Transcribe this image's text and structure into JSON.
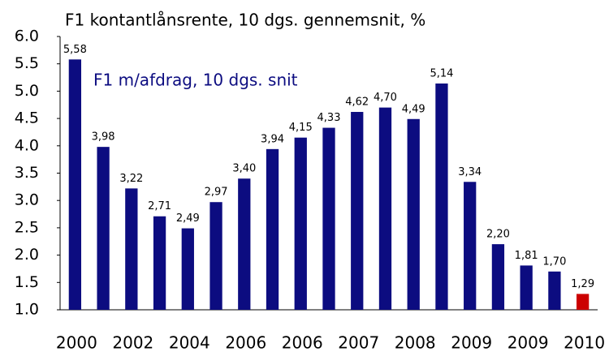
{
  "chart_data": {
    "type": "bar",
    "title": "F1 kontantlånsrente, 10 dgs. gennemsnit, %",
    "annotation": "F1 m/afdrag, 10 dgs. snit",
    "categories": [
      "2000",
      null,
      "2002",
      null,
      "2004",
      null,
      "2006",
      null,
      "2006",
      null,
      "2007",
      null,
      "2008",
      null,
      "2009",
      null,
      "2009",
      null,
      "2010"
    ],
    "values": [
      5.58,
      3.98,
      3.22,
      2.71,
      2.49,
      2.97,
      3.4,
      3.94,
      4.15,
      4.33,
      4.62,
      4.7,
      4.49,
      5.14,
      3.34,
      2.2,
      1.81,
      1.7,
      1.29
    ],
    "value_labels": [
      "5,58",
      "3,98",
      "3,22",
      "2,71",
      "2,49",
      "2,97",
      "3,40",
      "3,94",
      "4,15",
      "4,33",
      "4,62",
      "4,70",
      "4,49",
      "5,14",
      "3,34",
      "2,20",
      "1,81",
      "1,70",
      "1,29"
    ],
    "colors": [
      "#0c0c80",
      "#0c0c80",
      "#0c0c80",
      "#0c0c80",
      "#0c0c80",
      "#0c0c80",
      "#0c0c80",
      "#0c0c80",
      "#0c0c80",
      "#0c0c80",
      "#0c0c80",
      "#0c0c80",
      "#0c0c80",
      "#0c0c80",
      "#0c0c80",
      "#0c0c80",
      "#0c0c80",
      "#0c0c80",
      "#cc0000"
    ],
    "ylim": [
      1.0,
      6.0
    ],
    "yticks": [
      {
        "value": 1,
        "label": "1.0"
      },
      1.5,
      {
        "value": 2,
        "label": "2.0"
      },
      2.5,
      {
        "value": 3,
        "label": "3.0"
      },
      3.5,
      {
        "value": 4,
        "label": "4.0"
      },
      4.5,
      {
        "value": 5,
        "label": "5.0"
      },
      5.5,
      {
        "value": 6,
        "label": "6.0"
      }
    ],
    "grid": false
  }
}
